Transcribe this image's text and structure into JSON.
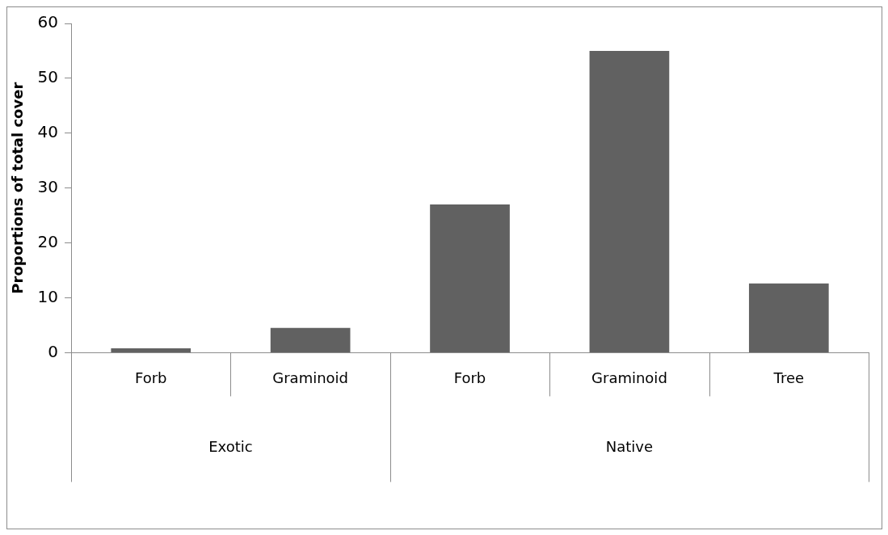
{
  "chart_data": {
    "type": "bar",
    "ylabel": "Proportions of total cover",
    "categories": [
      "Forb",
      "Graminoid",
      "Forb",
      "Graminoid",
      "Tree"
    ],
    "values": [
      0.8,
      4.5,
      27,
      55,
      12.6
    ],
    "color": "#616161",
    "ylim": [
      0,
      60
    ],
    "yticks": [
      0,
      10,
      20,
      30,
      40,
      50,
      60
    ],
    "grid": false,
    "legend": false,
    "annotations": [
      "Exotic",
      "Native"
    ]
  }
}
